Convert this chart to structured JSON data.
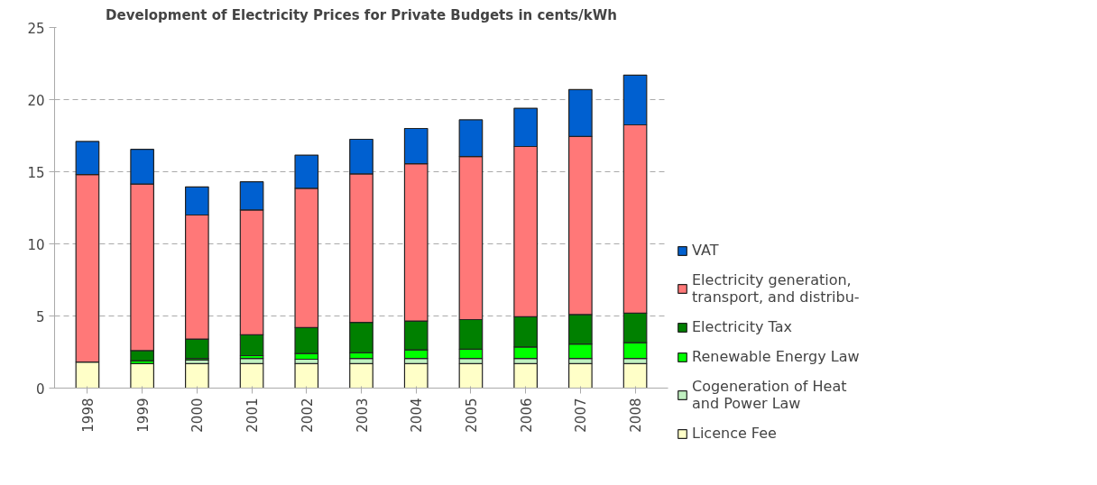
{
  "chart_data": {
    "type": "bar",
    "title": "Development of Electricity Prices for Private Budgets in cents/kWh",
    "categories": [
      "1998",
      "1999",
      "2000",
      "2001",
      "2002",
      "2003",
      "2004",
      "2005",
      "2006",
      "2007",
      "2008"
    ],
    "stacked": true,
    "series": [
      {
        "name": "Licence Fee",
        "color": "#ffffc8",
        "values": [
          1.8,
          1.7,
          1.7,
          1.7,
          1.7,
          1.7,
          1.7,
          1.7,
          1.7,
          1.7,
          1.7
        ]
      },
      {
        "name": "Cogeneration of Heat\nand Power Law",
        "color": "#c0f0c0",
        "values": [
          null,
          null,
          0.25,
          0.35,
          0.3,
          0.35,
          0.35,
          0.35,
          0.35,
          0.35,
          0.35
        ]
      },
      {
        "name": "Renewable Energy Law",
        "color": "#00ff00",
        "values": [
          null,
          0.2,
          0.1,
          0.2,
          0.4,
          0.4,
          0.6,
          0.65,
          0.8,
          1.0,
          1.1
        ]
      },
      {
        "name": "Electricity Tax",
        "color": "#008000",
        "values": [
          null,
          0.7,
          1.35,
          1.45,
          1.8,
          2.1,
          2.0,
          2.05,
          2.1,
          2.05,
          2.05
        ]
      },
      {
        "name": "Electricity generation,\ntransport, and distribu-",
        "color": "#ff7878",
        "values": [
          13.0,
          11.55,
          8.6,
          8.65,
          9.65,
          10.3,
          10.9,
          11.3,
          11.8,
          12.35,
          13.05
        ]
      },
      {
        "name": "VAT",
        "color": "#0060d0",
        "values": [
          2.3,
          2.4,
          1.95,
          1.95,
          2.3,
          2.4,
          2.45,
          2.55,
          2.65,
          3.25,
          3.45
        ]
      }
    ],
    "ylim": [
      0,
      25
    ],
    "yticks": [
      0,
      5,
      10,
      15,
      20,
      25
    ],
    "grid": "y",
    "legend": "right"
  }
}
